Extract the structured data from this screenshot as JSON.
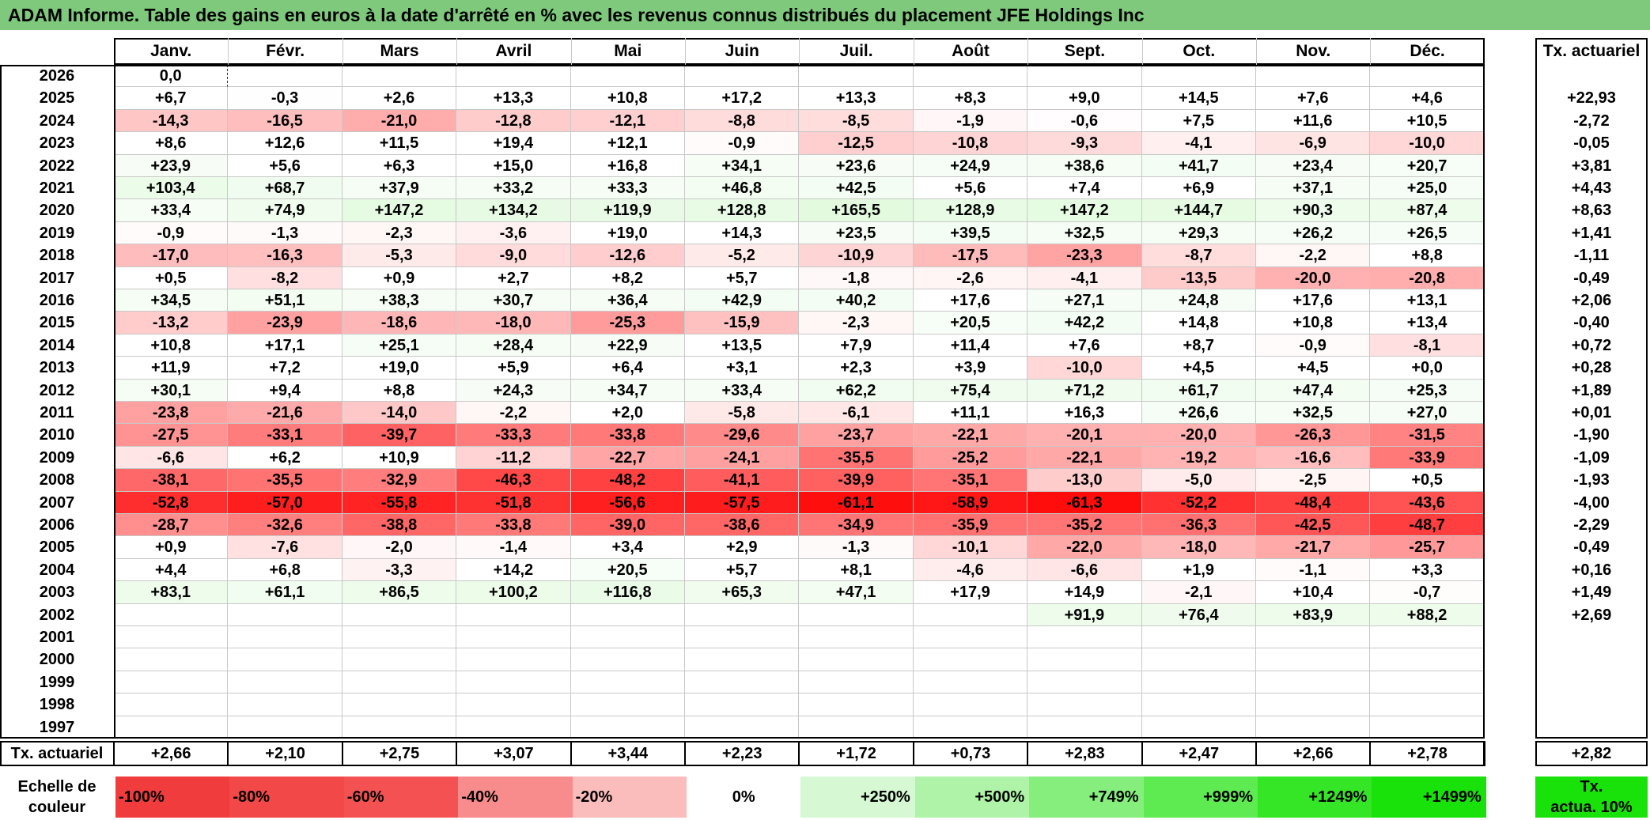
{
  "title": "ADAM Informe. Table des gains en euros à la date d'arrêté en % avec les revenus connus distribués du placement JFE Holdings Inc",
  "months": [
    "Janv.",
    "Févr.",
    "Mars",
    "Avril",
    "Mai",
    "Juin",
    "Juil.",
    "Août",
    "Sept.",
    "Oct.",
    "Nov.",
    "Déc."
  ],
  "actuarial_header": "Tx. actuariel",
  "rows": [
    {
      "year": "2026",
      "values": [
        "0,0",
        "",
        "",
        "",
        "",
        "",
        "",
        "",
        "",
        "",
        "",
        ""
      ],
      "annual": ""
    },
    {
      "year": "2025",
      "values": [
        "+6,7",
        "-0,3",
        "+2,6",
        "+13,3",
        "+10,8",
        "+17,2",
        "+13,3",
        "+8,3",
        "+9,0",
        "+14,5",
        "+7,6",
        "+4,6"
      ],
      "annual": "+22,93"
    },
    {
      "year": "2024",
      "values": [
        "-14,3",
        "-16,5",
        "-21,0",
        "-12,8",
        "-12,1",
        "-8,8",
        "-8,5",
        "-1,9",
        "-0,6",
        "+7,5",
        "+11,6",
        "+10,5"
      ],
      "annual": "-2,72"
    },
    {
      "year": "2023",
      "values": [
        "+8,6",
        "+12,6",
        "+11,5",
        "+19,4",
        "+12,1",
        "-0,9",
        "-12,5",
        "-10,8",
        "-9,3",
        "-4,1",
        "-6,9",
        "-10,0"
      ],
      "annual": "-0,05"
    },
    {
      "year": "2022",
      "values": [
        "+23,9",
        "+5,6",
        "+6,3",
        "+15,0",
        "+16,8",
        "+34,1",
        "+23,6",
        "+24,9",
        "+38,6",
        "+41,7",
        "+23,4",
        "+20,7"
      ],
      "annual": "+3,81"
    },
    {
      "year": "2021",
      "values": [
        "+103,4",
        "+68,7",
        "+37,9",
        "+33,2",
        "+33,3",
        "+46,8",
        "+42,5",
        "+5,6",
        "+7,4",
        "+6,9",
        "+37,1",
        "+25,0"
      ],
      "annual": "+4,43"
    },
    {
      "year": "2020",
      "values": [
        "+33,4",
        "+74,9",
        "+147,2",
        "+134,2",
        "+119,9",
        "+128,8",
        "+165,5",
        "+128,9",
        "+147,2",
        "+144,7",
        "+90,3",
        "+87,4"
      ],
      "annual": "+8,63"
    },
    {
      "year": "2019",
      "values": [
        "-0,9",
        "-1,3",
        "-2,3",
        "-3,6",
        "+19,0",
        "+14,3",
        "+23,5",
        "+39,5",
        "+32,5",
        "+29,3",
        "+26,2",
        "+26,5"
      ],
      "annual": "+1,41"
    },
    {
      "year": "2018",
      "values": [
        "-17,0",
        "-16,3",
        "-5,3",
        "-9,0",
        "-12,6",
        "-5,2",
        "-10,9",
        "-17,5",
        "-23,3",
        "-8,7",
        "-2,2",
        "+8,8"
      ],
      "annual": "-1,11"
    },
    {
      "year": "2017",
      "values": [
        "+0,5",
        "-8,2",
        "+0,9",
        "+2,7",
        "+8,2",
        "+5,7",
        "-1,8",
        "-2,6",
        "-4,1",
        "-13,5",
        "-20,0",
        "-20,8"
      ],
      "annual": "-0,49"
    },
    {
      "year": "2016",
      "values": [
        "+34,5",
        "+51,1",
        "+38,3",
        "+30,7",
        "+36,4",
        "+42,9",
        "+40,2",
        "+17,6",
        "+27,1",
        "+24,8",
        "+17,6",
        "+13,1"
      ],
      "annual": "+2,06"
    },
    {
      "year": "2015",
      "values": [
        "-13,2",
        "-23,9",
        "-18,6",
        "-18,0",
        "-25,3",
        "-15,9",
        "-2,3",
        "+20,5",
        "+42,2",
        "+14,8",
        "+10,8",
        "+13,4"
      ],
      "annual": "-0,40"
    },
    {
      "year": "2014",
      "values": [
        "+10,8",
        "+17,1",
        "+25,1",
        "+28,4",
        "+22,9",
        "+13,5",
        "+7,9",
        "+11,4",
        "+7,6",
        "+8,7",
        "-0,9",
        "-8,1"
      ],
      "annual": "+0,72"
    },
    {
      "year": "2013",
      "values": [
        "+11,9",
        "+7,2",
        "+19,0",
        "+5,9",
        "+6,4",
        "+3,1",
        "+2,3",
        "+3,9",
        "-10,0",
        "+4,5",
        "+4,5",
        "+0,0"
      ],
      "annual": "+0,28"
    },
    {
      "year": "2012",
      "values": [
        "+30,1",
        "+9,4",
        "+8,8",
        "+24,3",
        "+34,7",
        "+33,4",
        "+62,2",
        "+75,4",
        "+71,2",
        "+61,7",
        "+47,4",
        "+25,3"
      ],
      "annual": "+1,89"
    },
    {
      "year": "2011",
      "values": [
        "-23,8",
        "-21,6",
        "-14,0",
        "-2,2",
        "+2,0",
        "-5,8",
        "-6,1",
        "+11,1",
        "+16,3",
        "+26,6",
        "+32,5",
        "+27,0"
      ],
      "annual": "+0,01"
    },
    {
      "year": "2010",
      "values": [
        "-27,5",
        "-33,1",
        "-39,7",
        "-33,3",
        "-33,8",
        "-29,6",
        "-23,7",
        "-22,1",
        "-20,1",
        "-20,0",
        "-26,3",
        "-31,5"
      ],
      "annual": "-1,90"
    },
    {
      "year": "2009",
      "values": [
        "-6,6",
        "+6,2",
        "+10,9",
        "-11,2",
        "-22,7",
        "-24,1",
        "-35,5",
        "-25,2",
        "-22,1",
        "-19,2",
        "-16,6",
        "-33,9"
      ],
      "annual": "-1,09"
    },
    {
      "year": "2008",
      "values": [
        "-38,1",
        "-35,5",
        "-32,9",
        "-46,3",
        "-48,2",
        "-41,1",
        "-39,9",
        "-35,1",
        "-13,0",
        "-5,0",
        "-2,5",
        "+0,5"
      ],
      "annual": "-1,93"
    },
    {
      "year": "2007",
      "values": [
        "-52,8",
        "-57,0",
        "-55,8",
        "-51,8",
        "-56,6",
        "-57,5",
        "-61,1",
        "-58,9",
        "-61,3",
        "-52,2",
        "-48,4",
        "-43,6"
      ],
      "annual": "-4,00"
    },
    {
      "year": "2006",
      "values": [
        "-28,7",
        "-32,6",
        "-38,8",
        "-33,8",
        "-39,0",
        "-38,6",
        "-34,9",
        "-35,9",
        "-35,2",
        "-36,3",
        "-42,5",
        "-48,7"
      ],
      "annual": "-2,29"
    },
    {
      "year": "2005",
      "values": [
        "+0,9",
        "-7,6",
        "-2,0",
        "-1,4",
        "+3,4",
        "+2,9",
        "-1,3",
        "-10,1",
        "-22,0",
        "-18,0",
        "-21,7",
        "-25,7"
      ],
      "annual": "-0,49"
    },
    {
      "year": "2004",
      "values": [
        "+4,4",
        "+6,8",
        "-3,3",
        "+14,2",
        "+20,5",
        "+5,7",
        "+8,1",
        "-4,6",
        "-6,6",
        "+1,9",
        "-1,1",
        "+3,3"
      ],
      "annual": "+0,16"
    },
    {
      "year": "2003",
      "values": [
        "+83,1",
        "+61,1",
        "+86,5",
        "+100,2",
        "+116,8",
        "+65,3",
        "+47,1",
        "+17,9",
        "+14,9",
        "-2,1",
        "+10,4",
        "-0,7"
      ],
      "annual": "+1,49"
    },
    {
      "year": "2002",
      "values": [
        "",
        "",
        "",
        "",
        "",
        "",
        "",
        "",
        "+91,9",
        "+76,4",
        "+83,9",
        "+88,2"
      ],
      "annual": "+2,69"
    },
    {
      "year": "2001",
      "values": [
        "",
        "",
        "",
        "",
        "",
        "",
        "",
        "",
        "",
        "",
        "",
        ""
      ],
      "annual": ""
    },
    {
      "year": "2000",
      "values": [
        "",
        "",
        "",
        "",
        "",
        "",
        "",
        "",
        "",
        "",
        "",
        ""
      ],
      "annual": ""
    },
    {
      "year": "1999",
      "values": [
        "",
        "",
        "",
        "",
        "",
        "",
        "",
        "",
        "",
        "",
        "",
        ""
      ],
      "annual": ""
    },
    {
      "year": "1998",
      "values": [
        "",
        "",
        "",
        "",
        "",
        "",
        "",
        "",
        "",
        "",
        "",
        ""
      ],
      "annual": ""
    },
    {
      "year": "1997",
      "values": [
        "",
        "",
        "",
        "",
        "",
        "",
        "",
        "",
        "",
        "",
        "",
        ""
      ],
      "annual": ""
    }
  ],
  "footer": {
    "label": "Tx. actuariel",
    "values": [
      "+2,66",
      "+2,10",
      "+2,75",
      "+3,07",
      "+3,44",
      "+2,23",
      "+1,72",
      "+0,73",
      "+2,83",
      "+2,47",
      "+2,66",
      "+2,78"
    ],
    "annual": "+2,82"
  },
  "scale": {
    "label_line1": "Echelle de",
    "label_line2": "couleur",
    "items": [
      {
        "text": "-100%",
        "color": "#f03c3c",
        "align": "left"
      },
      {
        "text": "-80%",
        "color": "#f24848",
        "align": "left"
      },
      {
        "text": "-60%",
        "color": "#f45252",
        "align": "left"
      },
      {
        "text": "-40%",
        "color": "#f88c8c",
        "align": "left"
      },
      {
        "text": "-20%",
        "color": "#fbbcbc",
        "align": "left"
      },
      {
        "text": "0%",
        "color": "#ffffff",
        "align": "center"
      },
      {
        "text": "+250%",
        "color": "#d6f8d3",
        "align": "right"
      },
      {
        "text": "+500%",
        "color": "#aef3a7",
        "align": "right"
      },
      {
        "text": "+749%",
        "color": "#86ee7c",
        "align": "right"
      },
      {
        "text": "+999%",
        "color": "#5eea51",
        "align": "right"
      },
      {
        "text": "+1249%",
        "color": "#35e626",
        "align": "right"
      },
      {
        "text": "+1499%",
        "color": "#18e20a",
        "align": "right"
      }
    ],
    "actual_label_line1": "Tx.",
    "actual_label_line2": "actua. 10%",
    "actual_color": "#18e20a"
  }
}
